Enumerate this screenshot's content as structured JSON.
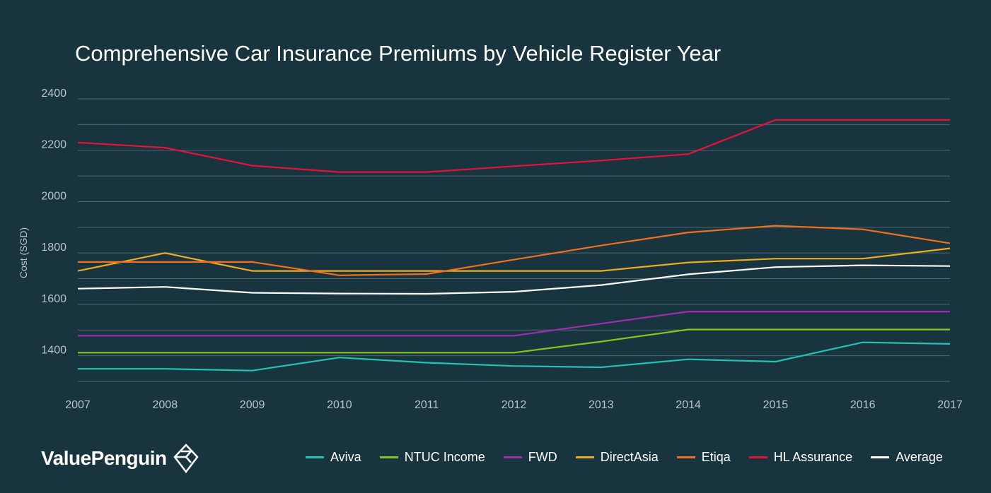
{
  "brand": {
    "name": "ValuePenguin",
    "logo_icon": "valuepenguin-diamond-icon"
  },
  "colors": {
    "background": "#17343f",
    "grid": "#4e6972",
    "axis_text": "#b9c4c8"
  },
  "chart_data": {
    "type": "line",
    "title": "Comprehensive Car Insurance Premiums by Vehicle Register Year",
    "xlabel": "",
    "ylabel": "Cost (SGD)",
    "ylim": [
      1300,
      2400
    ],
    "yticks": [
      1400,
      1600,
      1800,
      2000,
      2200,
      2400
    ],
    "grid": true,
    "legend_position": "bottom",
    "categories": [
      "2007",
      "2008",
      "2009",
      "2010",
      "2011",
      "2012",
      "2013",
      "2014",
      "2015",
      "2016",
      "2017"
    ],
    "series": [
      {
        "name": "Aviva",
        "color": "#1fc4b5",
        "values": [
          1349,
          1349,
          1342,
          1393,
          1373,
          1360,
          1355,
          1386,
          1377,
          1452,
          1446
        ]
      },
      {
        "name": "NTUC Income",
        "color": "#8bc11f",
        "values": [
          1412,
          1412,
          1412,
          1412,
          1412,
          1412,
          1455,
          1502,
          1502,
          1502,
          1502
        ]
      },
      {
        "name": "FWD",
        "color": "#a02db0",
        "values": [
          1478,
          1478,
          1478,
          1478,
          1478,
          1478,
          1525,
          1572,
          1572,
          1572,
          1572
        ]
      },
      {
        "name": "DirectAsia",
        "color": "#f0ac1c",
        "values": [
          1730,
          1800,
          1730,
          1730,
          1730,
          1730,
          1730,
          1763,
          1778,
          1778,
          1818
        ]
      },
      {
        "name": "Etiqa",
        "color": "#f26f1f",
        "values": [
          1765,
          1765,
          1765,
          1713,
          1718,
          1774,
          1829,
          1880,
          1906,
          1892,
          1838
        ]
      },
      {
        "name": "HL Assurance",
        "color": "#e8113c",
        "values": [
          2230,
          2210,
          2140,
          2115,
          2115,
          2138,
          2160,
          2185,
          2318,
          2318,
          2318
        ]
      },
      {
        "name": "Average",
        "color": "#ffffff",
        "values": [
          1661,
          1668,
          1645,
          1642,
          1641,
          1649,
          1675,
          1717,
          1745,
          1752,
          1749
        ]
      }
    ]
  }
}
